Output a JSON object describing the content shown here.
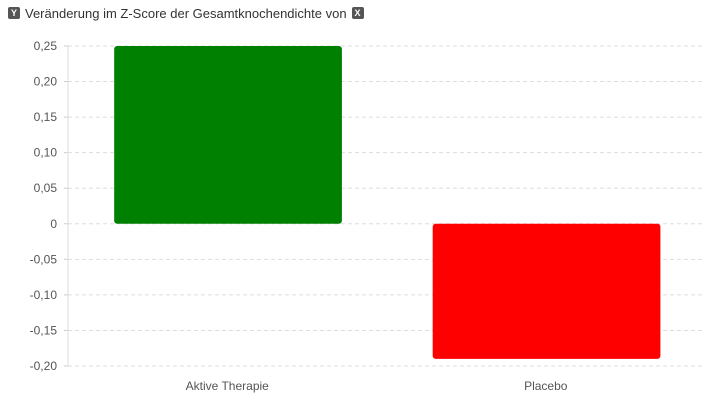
{
  "header": {
    "title": "Veränderung im Z-Score der Gesamtknochendichte von",
    "y_icon": "Y",
    "x_icon": "X"
  },
  "chart_data": {
    "type": "bar",
    "categories": [
      "Aktive Therapie",
      "Placebo"
    ],
    "values": [
      0.25,
      -0.19
    ],
    "colors": [
      "#008000",
      "#ff0000"
    ],
    "ylim": [
      -0.2,
      0.25
    ],
    "yticks": [
      0.25,
      0.2,
      0.15,
      0.1,
      0.05,
      0,
      -0.05,
      -0.1,
      -0.15,
      -0.2
    ],
    "ytick_labels": [
      "0,25",
      "0,20",
      "0,15",
      "0,10",
      "0,05",
      "0",
      "-0,05",
      "-0,10",
      "-0,15",
      "-0,20"
    ],
    "grid": true,
    "xlabel": "",
    "ylabel": ""
  }
}
